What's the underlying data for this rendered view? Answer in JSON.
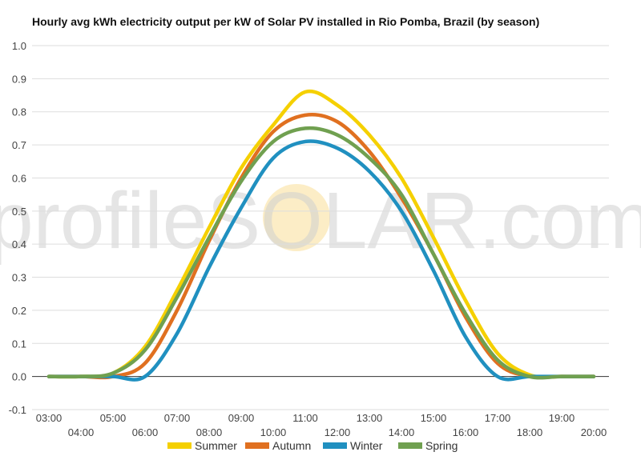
{
  "chart_data": {
    "type": "line",
    "title": "Hourly avg kWh electricity output per kW of Solar PV installed in Rio Pomba, Brazil (by season)",
    "xlabel": "",
    "ylabel": "",
    "ylim": [
      -0.1,
      1.0
    ],
    "yticks": [
      "1.0",
      "0.9",
      "0.8",
      "0.7",
      "0.6",
      "0.5",
      "0.4",
      "0.3",
      "0.2",
      "0.1",
      "0.0",
      "-0.1"
    ],
    "categories": [
      "03:00",
      "04:00",
      "05:00",
      "06:00",
      "07:00",
      "08:00",
      "09:00",
      "10:00",
      "11:00",
      "12:00",
      "13:00",
      "14:00",
      "15:00",
      "16:00",
      "17:00",
      "18:00",
      "19:00",
      "20:00"
    ],
    "grid": true,
    "legend": "bottom",
    "watermark": "profileSOLAR.com",
    "series": [
      {
        "name": "Summer",
        "color": "#f5d000",
        "values": [
          0.0,
          0.0,
          0.01,
          0.09,
          0.26,
          0.45,
          0.63,
          0.76,
          0.86,
          0.82,
          0.73,
          0.6,
          0.42,
          0.23,
          0.07,
          0.005,
          0.0,
          0.0
        ]
      },
      {
        "name": "Autumn",
        "color": "#e07020",
        "values": [
          0.0,
          0.0,
          0.0,
          0.04,
          0.2,
          0.41,
          0.6,
          0.74,
          0.79,
          0.77,
          0.68,
          0.54,
          0.37,
          0.18,
          0.04,
          0.0,
          0.0,
          0.0
        ]
      },
      {
        "name": "Winter",
        "color": "#2090c0",
        "values": [
          0.0,
          0.0,
          0.0,
          0.0,
          0.13,
          0.33,
          0.51,
          0.66,
          0.71,
          0.69,
          0.62,
          0.5,
          0.32,
          0.12,
          0.0,
          0.0,
          0.0,
          0.0
        ]
      },
      {
        "name": "Spring",
        "color": "#70a050",
        "values": [
          0.0,
          0.0,
          0.01,
          0.08,
          0.24,
          0.42,
          0.59,
          0.71,
          0.75,
          0.73,
          0.66,
          0.55,
          0.37,
          0.19,
          0.05,
          0.0,
          0.0,
          0.0
        ]
      }
    ]
  }
}
